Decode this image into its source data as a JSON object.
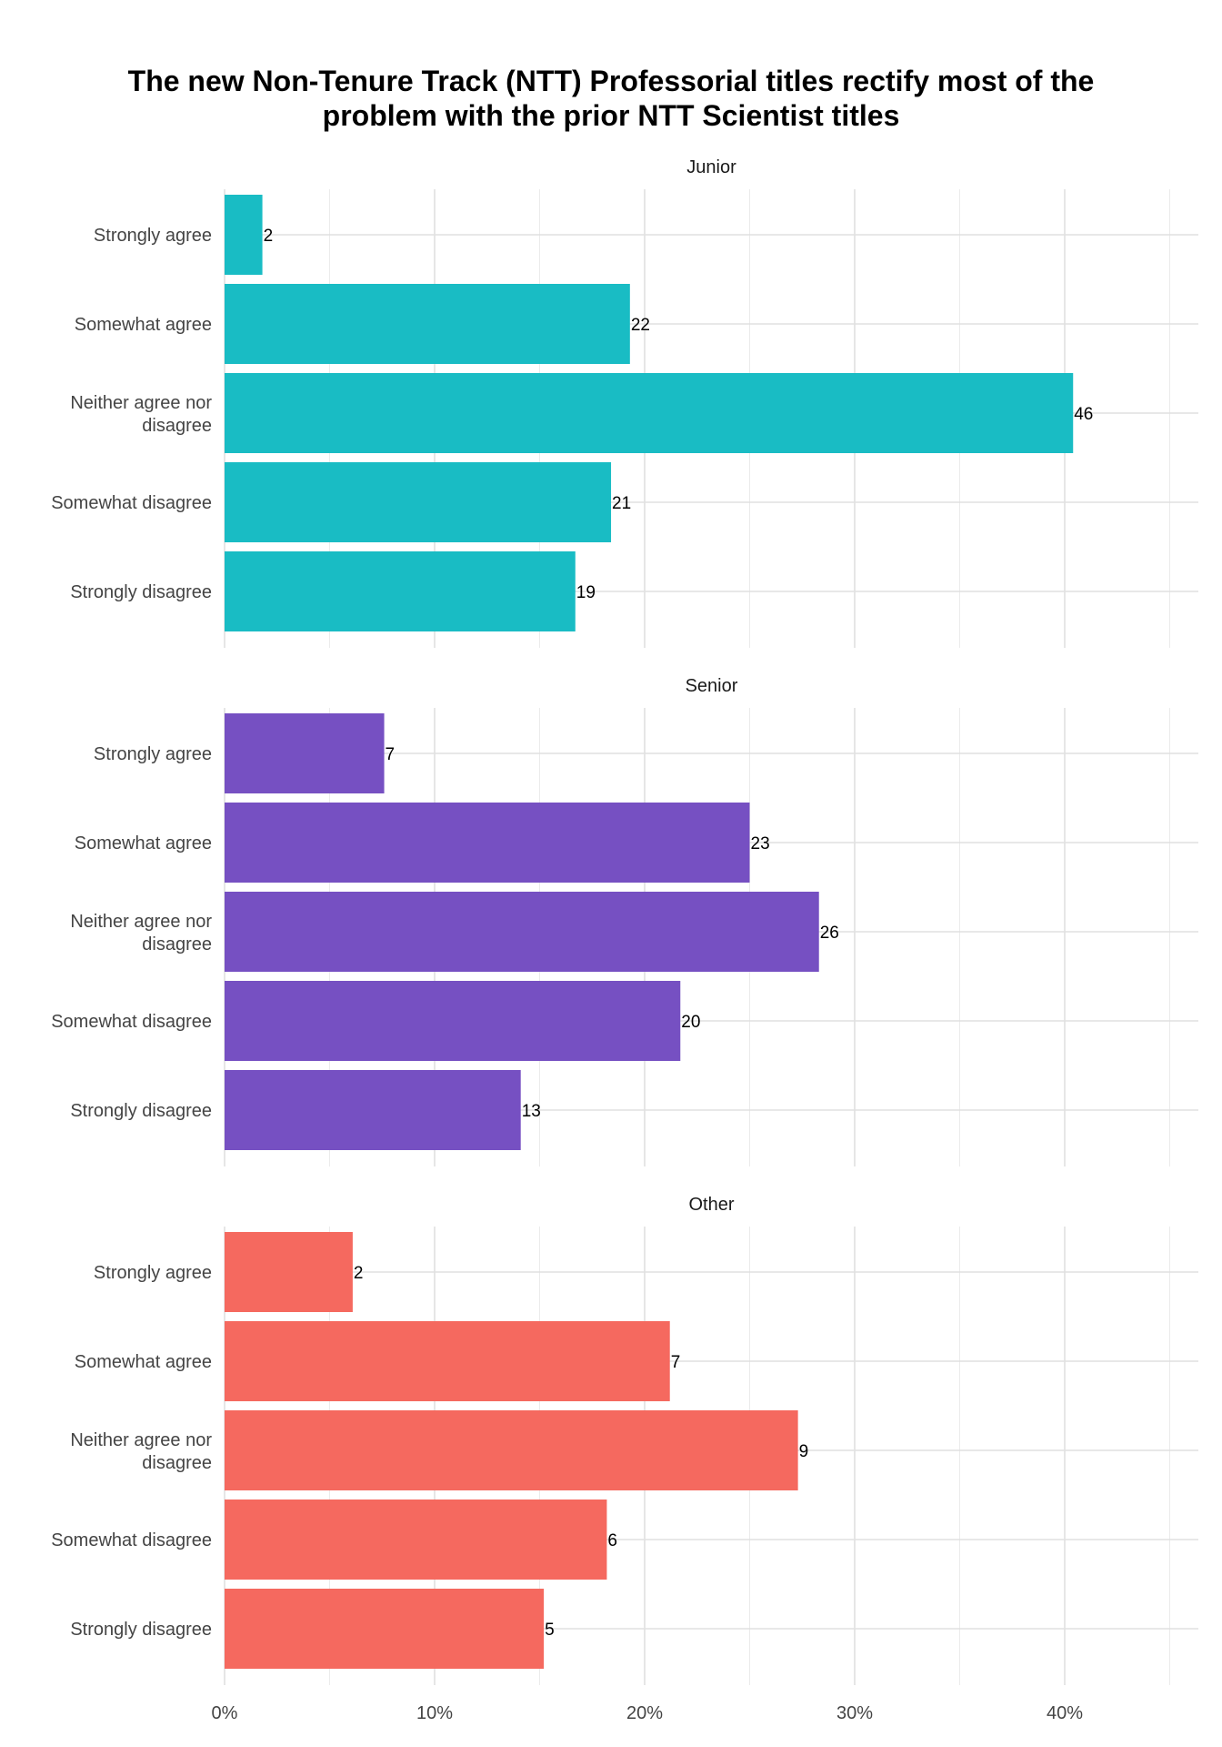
{
  "chart_data": {
    "type": "bar",
    "orientation": "horizontal",
    "title_lines": [
      "The new Non-Tenure Track (NTT) Professorial titles rectify most of the",
      "problem with the prior NTT Scientist titles"
    ],
    "xlabel": "",
    "ylabel": "",
    "xlim": [
      0,
      46.5
    ],
    "x_ticks": [
      0,
      10,
      20,
      30,
      40
    ],
    "x_tick_labels": [
      "0%",
      "10%",
      "20%",
      "30%",
      "40%"
    ],
    "categories": [
      "Strongly agree",
      "Somewhat agree",
      "Neither agree nor disagree",
      "Somewhat disagree",
      "Strongly disagree"
    ],
    "category_label_lines": [
      [
        "Strongly agree"
      ],
      [
        "Somewhat agree"
      ],
      [
        "Neither agree nor",
        "disagree"
      ],
      [
        "Somewhat disagree"
      ],
      [
        "Strongly disagree"
      ]
    ],
    "grid": true,
    "legend": "none",
    "panels": [
      {
        "name": "Junior",
        "color": "#19BCC4",
        "percent": [
          1.8,
          19.3,
          40.4,
          18.4,
          16.7
        ],
        "counts": [
          2,
          22,
          46,
          21,
          19
        ]
      },
      {
        "name": "Senior",
        "color": "#7650C2",
        "percent": [
          7.6,
          25.0,
          28.3,
          21.7,
          14.1
        ],
        "counts": [
          7,
          23,
          26,
          20,
          13
        ]
      },
      {
        "name": "Other",
        "color": "#F5695F",
        "percent": [
          6.1,
          21.2,
          27.3,
          18.2,
          15.2
        ],
        "counts": [
          2,
          7,
          9,
          6,
          5
        ]
      }
    ]
  }
}
